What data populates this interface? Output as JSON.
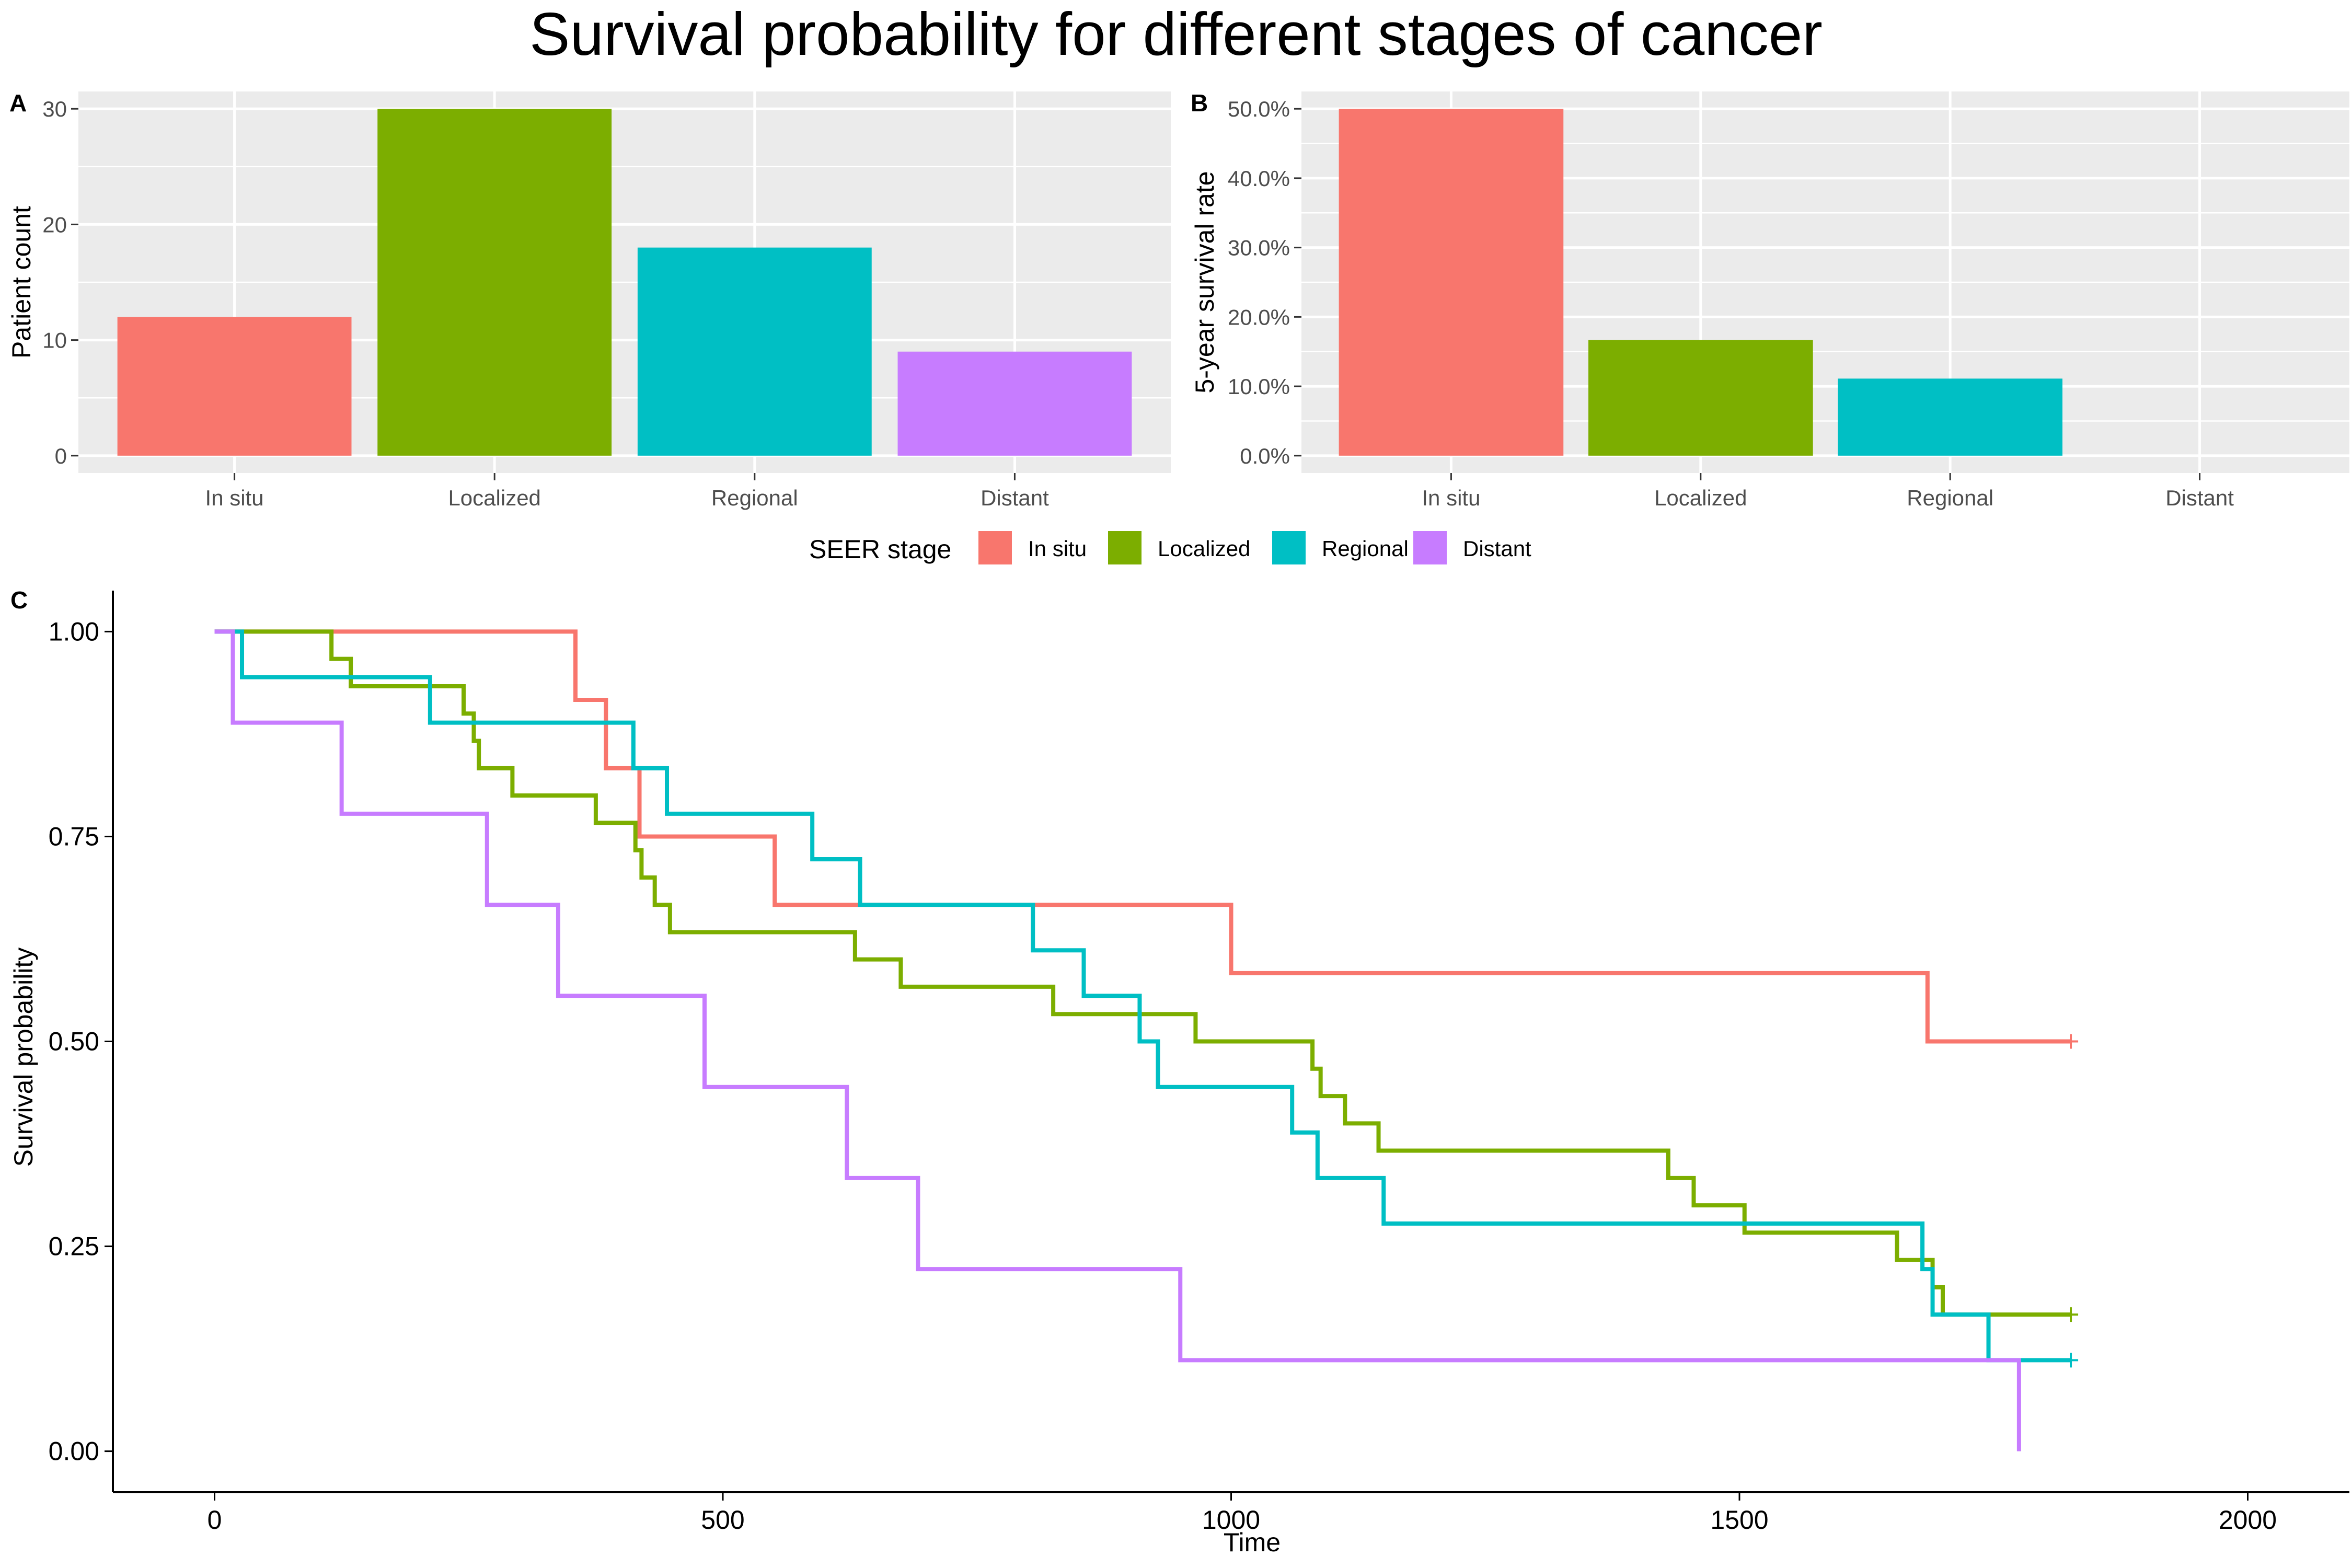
{
  "title": "Survival probability for different stages of cancer",
  "colors": {
    "In situ": "#F8766D",
    "Localized": "#7CAE00",
    "Regional": "#00BFC4",
    "Distant": "#C77CFF",
    "panel_bg": "#EBEBEB",
    "grid": "#FFFFFF"
  },
  "legend": {
    "title": "SEER stage",
    "items": [
      "In situ",
      "Localized",
      "Regional",
      "Distant"
    ]
  },
  "panels": {
    "a": {
      "tag": "A"
    },
    "b": {
      "tag": "B"
    },
    "c": {
      "tag": "C"
    }
  },
  "chart_data": [
    {
      "type": "bar",
      "panel": "A",
      "categories": [
        "In situ",
        "Localized",
        "Regional",
        "Distant"
      ],
      "values": [
        12,
        30,
        18,
        9
      ],
      "xlabel": "",
      "ylabel": "Patient count",
      "ylim": [
        -1.5,
        31.5
      ],
      "yticks": [
        0,
        10,
        20,
        30
      ],
      "ytick_labels": [
        "0",
        "10",
        "20",
        "30"
      ],
      "grid": true
    },
    {
      "type": "bar",
      "panel": "B",
      "categories": [
        "In situ",
        "Localized",
        "Regional",
        "Distant"
      ],
      "values": [
        0.5,
        0.1667,
        0.1111,
        0
      ],
      "xlabel": "",
      "ylabel": "5-year survival rate",
      "ylim": [
        -0.025,
        0.525
      ],
      "yticks": [
        0,
        0.1,
        0.2,
        0.3,
        0.4,
        0.5
      ],
      "ytick_labels": [
        "0.0%",
        "10.0%",
        "20.0%",
        "30.0%",
        "40.0%",
        "50.0%"
      ],
      "grid": true
    },
    {
      "type": "line",
      "panel": "C",
      "step": true,
      "xlabel": "Time",
      "ylabel": "Survival probability",
      "xlim": [
        -100,
        2100
      ],
      "ylim": [
        -0.05,
        1.05
      ],
      "xticks": [
        0,
        500,
        1000,
        1500,
        2000
      ],
      "xtick_labels": [
        "0",
        "500",
        "1000",
        "1500",
        "2000"
      ],
      "yticks": [
        0,
        0.25,
        0.5,
        0.75,
        1.0
      ],
      "ytick_labels": [
        "0.00",
        "0.25",
        "0.50",
        "0.75",
        "1.00"
      ],
      "grid": false,
      "series": [
        {
          "name": "In situ",
          "x": [
            0,
            355,
            385,
            418,
            551,
            1000,
            1685,
            1826
          ],
          "y": [
            1.0,
            0.9167,
            0.8333,
            0.75,
            0.6667,
            0.5833,
            0.5,
            0.5
          ],
          "censor": [
            [
              1826,
              0.5
            ]
          ]
        },
        {
          "name": "Localized",
          "x": [
            0,
            115,
            134,
            245,
            255,
            260,
            293,
            375,
            414,
            420,
            433,
            448,
            630,
            675,
            825,
            965,
            1080,
            1088,
            1112,
            1145,
            1430,
            1455,
            1505,
            1655,
            1690,
            1700,
            1710,
            1826
          ],
          "y": [
            1.0,
            0.9667,
            0.9333,
            0.9,
            0.8667,
            0.8333,
            0.8,
            0.7667,
            0.7333,
            0.7,
            0.6667,
            0.6333,
            0.6,
            0.5667,
            0.5333,
            0.5,
            0.4667,
            0.4333,
            0.4,
            0.3667,
            0.3333,
            0.3,
            0.2667,
            0.2333,
            0.2,
            0.1667,
            0.1667,
            0.1667
          ],
          "censor": [
            [
              1826,
              0.1667
            ]
          ]
        },
        {
          "name": "Regional",
          "x": [
            0,
            27,
            212,
            412,
            445,
            588,
            635,
            805,
            855,
            910,
            928,
            1060,
            1085,
            1150,
            1680,
            1690,
            1745,
            1826
          ],
          "y": [
            1.0,
            0.9444,
            0.8889,
            0.8333,
            0.7778,
            0.7222,
            0.6667,
            0.6111,
            0.5556,
            0.5,
            0.4444,
            0.3889,
            0.3333,
            0.2778,
            0.2222,
            0.1667,
            0.1111,
            0.1111
          ],
          "censor": [
            [
              1826,
              0.1111
            ]
          ]
        },
        {
          "name": "Distant",
          "x": [
            0,
            18,
            125,
            268,
            338,
            482,
            622,
            692,
            950,
            1775
          ],
          "y": [
            1.0,
            0.8889,
            0.7778,
            0.6667,
            0.5556,
            0.4444,
            0.3333,
            0.2222,
            0.1111,
            0.0
          ],
          "censor": []
        }
      ]
    }
  ]
}
